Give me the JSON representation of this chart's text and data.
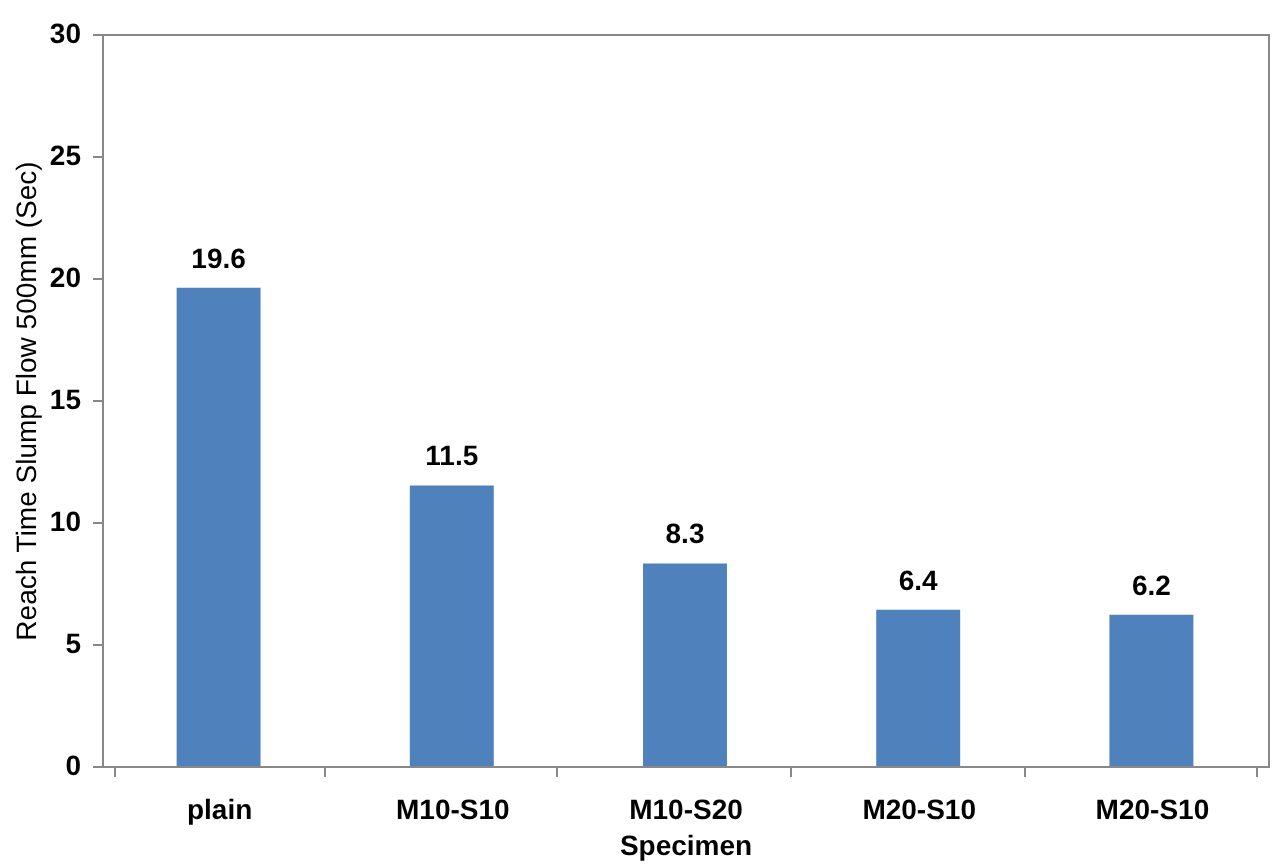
{
  "chart_data": {
    "type": "bar",
    "xlabel": "Specimen",
    "ylabel": "Reach Time Slump Flow 500mm (Sec)",
    "categories": [
      "plain",
      "M10-S10",
      "M10-S20",
      "M20-S10",
      "M20-S10"
    ],
    "values": [
      19.6,
      11.5,
      8.3,
      6.4,
      6.2
    ],
    "color": "#4f81bd",
    "ylim": [
      0,
      30
    ],
    "yticks": [
      0,
      5,
      10,
      15,
      20,
      25,
      30
    ],
    "grid": false,
    "data_labels": true
  }
}
